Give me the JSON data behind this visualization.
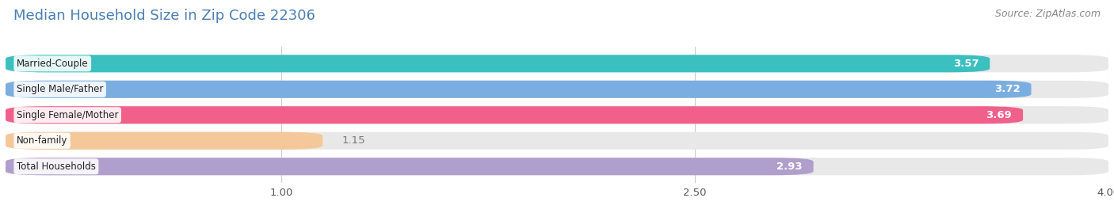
{
  "title": "Median Household Size in Zip Code 22306",
  "source": "Source: ZipAtlas.com",
  "categories": [
    "Married-Couple",
    "Single Male/Father",
    "Single Female/Mother",
    "Non-family",
    "Total Households"
  ],
  "values": [
    3.57,
    3.72,
    3.69,
    1.15,
    2.93
  ],
  "bar_colors": [
    "#3bbfbf",
    "#7aaee0",
    "#f0608a",
    "#f5c89a",
    "#b09fcc"
  ],
  "bar_bg_color": "#e8e8e8",
  "value_label_inside_color": "#ffffff",
  "value_label_outside_color": "#777777",
  "title_color": "#4a7fb5",
  "source_color": "#888888",
  "xlim_min": 0.0,
  "xlim_max": 4.0,
  "xticks": [
    1.0,
    2.5,
    4.0
  ],
  "background_color": "#ffffff",
  "bar_height": 0.68,
  "bar_gap": 0.32,
  "figsize": [
    14.06,
    2.69
  ],
  "dpi": 100,
  "title_fontsize": 13,
  "source_fontsize": 9,
  "label_fontsize": 8.5,
  "value_fontsize": 9.5,
  "tick_fontsize": 9.5,
  "rounding_size": 0.15
}
